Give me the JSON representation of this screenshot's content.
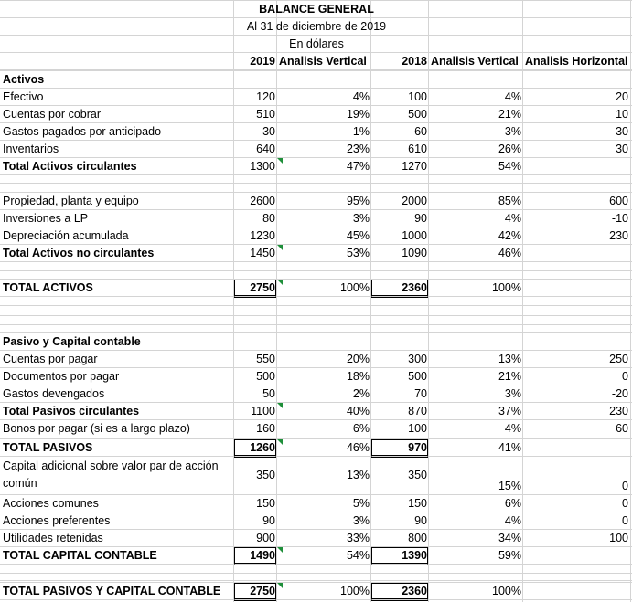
{
  "header": {
    "title": "BALANCE GENERAL",
    "date": "Al 31 de diciembre de 2019",
    "currency": "En dólares",
    "col_2019": "2019",
    "col_av_2019": "Analisis Vertical",
    "col_2018": "2018",
    "col_av_2018": "Analisis Vertical",
    "col_ah": "Analisis Horizontal"
  },
  "rows": [
    {
      "label": "Activos",
      "bold": true
    },
    {
      "label": "Efectivo",
      "v19": "120",
      "p19": "4%",
      "v18": "100",
      "p18": "4%",
      "ah": "20"
    },
    {
      "label": "Cuentas por cobrar",
      "v19": "510",
      "p19": "19%",
      "v18": "500",
      "p18": "21%",
      "ah": "10"
    },
    {
      "label": "Gastos pagados por anticipado",
      "v19": "30",
      "p19": "1%",
      "v18": "60",
      "p18": "3%",
      "ah": "-30"
    },
    {
      "label": "Inventarios",
      "v19": "640",
      "p19": "23%",
      "v18": "610",
      "p18": "26%",
      "ah": "30"
    },
    {
      "label": "Total Activos circulantes",
      "bold": true,
      "v19": "1300",
      "p19": "47%",
      "v18": "1270",
      "p18": "54%",
      "ah": ""
    },
    {
      "label": "Propiedad, planta y equipo",
      "v19": "2600",
      "p19": "95%",
      "v18": "2000",
      "p18": "85%",
      "ah": "600"
    },
    {
      "label": "Inversiones a LP",
      "v19": "80",
      "p19": "3%",
      "v18": "90",
      "p18": "4%",
      "ah": "-10"
    },
    {
      "label": "Depreciación acumulada",
      "v19": "1230",
      "p19": "45%",
      "v18": "1000",
      "p18": "42%",
      "ah": "230"
    },
    {
      "label": "Total Activos no circulantes",
      "bold": true,
      "v19": "1450",
      "p19": "53%",
      "v18": "1090",
      "p18": "46%",
      "ah": ""
    },
    {
      "label": "TOTAL ACTIVOS",
      "bold": true,
      "v19": "2750",
      "p19": "100%",
      "v18": "2360",
      "p18": "100%",
      "ah": ""
    },
    {
      "label": "Pasivo y Capital contable",
      "bold": true
    },
    {
      "label": "Cuentas por pagar",
      "v19": "550",
      "p19": "20%",
      "v18": "300",
      "p18": "13%",
      "ah": "250"
    },
    {
      "label": "Documentos por pagar",
      "v19": "500",
      "p19": "18%",
      "v18": "500",
      "p18": "21%",
      "ah": "0"
    },
    {
      "label": "Gastos devengados",
      "v19": "50",
      "p19": "2%",
      "v18": "70",
      "p18": "3%",
      "ah": "-20"
    },
    {
      "label": "Total Pasivos circulantes",
      "bold": true,
      "v19": "1100",
      "p19": "40%",
      "v18": "870",
      "p18": "37%",
      "ah": "230"
    },
    {
      "label": "Bonos por pagar (si es a largo plazo)",
      "v19": "160",
      "p19": "6%",
      "v18": "100",
      "p18": "4%",
      "ah": "60"
    },
    {
      "label": "TOTAL PASIVOS",
      "bold": true,
      "v19": "1260",
      "p19": "46%",
      "v18": "970",
      "p18": "41%",
      "ah": ""
    },
    {
      "label": "Capital adicional sobre valor par de acción común",
      "v19": "350",
      "p19": "13%",
      "v18": "350",
      "p18": "15%",
      "ah": "0"
    },
    {
      "label": "Acciones comunes",
      "v19": "150",
      "p19": "5%",
      "v18": "150",
      "p18": "6%",
      "ah": "0"
    },
    {
      "label": "Acciones preferentes",
      "v19": "90",
      "p19": "3%",
      "v18": "90",
      "p18": "4%",
      "ah": "0"
    },
    {
      "label": "Utilidades retenidas",
      "v19": "900",
      "p19": "33%",
      "v18": "800",
      "p18": "34%",
      "ah": "100"
    },
    {
      "label": "TOTAL CAPITAL CONTABLE",
      "bold": true,
      "v19": "1490",
      "p19": "54%",
      "v18": "1390",
      "p18": "59%",
      "ah": ""
    },
    {
      "label": "TOTAL PASIVOS Y CAPITAL CONTABLE",
      "bold": true,
      "v19": "2750",
      "p19": "100%",
      "v18": "2360",
      "p18": "100%",
      "ah": ""
    }
  ]
}
